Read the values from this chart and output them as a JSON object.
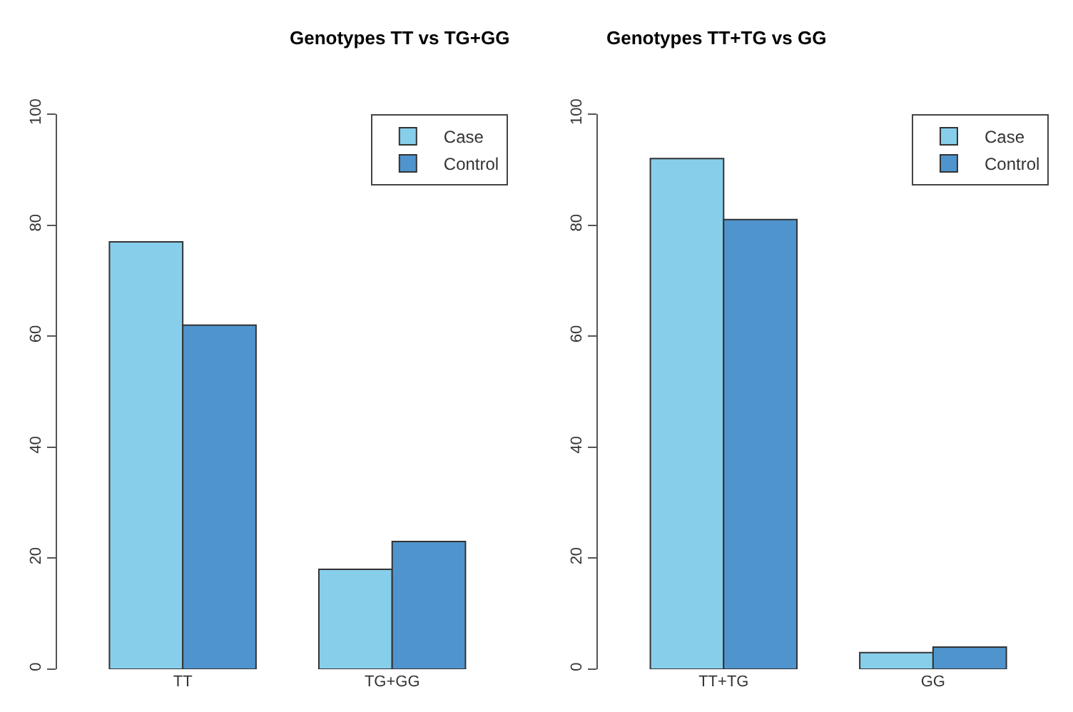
{
  "chart_data": [
    {
      "type": "bar",
      "title": "Genotypes TT vs TG+GG",
      "categories": [
        "TT",
        "TG+GG"
      ],
      "ylim": [
        0,
        100
      ],
      "yticks": [
        0,
        20,
        40,
        60,
        80,
        100
      ],
      "legend": "top right",
      "series": [
        {
          "name": "Case",
          "color": "#87ceeb",
          "values": [
            77,
            18
          ]
        },
        {
          "name": "Control",
          "color": "#4f94cd",
          "values": [
            62,
            23
          ]
        }
      ]
    },
    {
      "type": "bar",
      "title": "Genotypes TT+TG vs GG",
      "categories": [
        "TT+TG",
        "GG"
      ],
      "ylim": [
        0,
        100
      ],
      "yticks": [
        0,
        20,
        40,
        60,
        80,
        100
      ],
      "legend": "top right",
      "series": [
        {
          "name": "Case",
          "color": "#87ceeb",
          "values": [
            92,
            3
          ]
        },
        {
          "name": "Control",
          "color": "#4f94cd",
          "values": [
            81,
            4
          ]
        }
      ]
    }
  ]
}
